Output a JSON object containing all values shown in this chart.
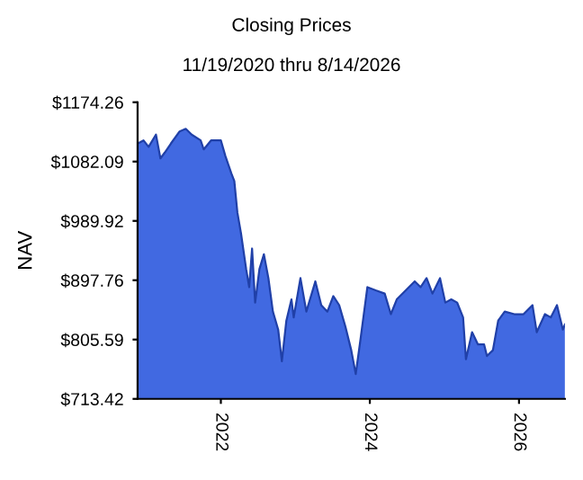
{
  "chart_data": {
    "type": "area",
    "title": "Closing Prices",
    "subtitle": "11/19/2020 thru 8/14/2026",
    "ylabel": "NAV",
    "x": [
      "2020-11-19",
      "2020-12-18",
      "2021-01-12",
      "2021-02-17",
      "2021-03-11",
      "2021-04-01",
      "2021-05-01",
      "2021-06-13",
      "2021-07-13",
      "2021-08-11",
      "2021-09-24",
      "2021-10-09",
      "2021-11-14",
      "2022-01-01",
      "2022-01-23",
      "2022-02-21",
      "2022-03-08",
      "2022-03-23",
      "2022-04-10",
      "2022-05-05",
      "2022-05-20",
      "2022-06-03",
      "2022-06-18",
      "2022-07-09",
      "2022-07-31",
      "2022-08-22",
      "2022-09-13",
      "2022-10-09",
      "2022-10-27",
      "2022-11-18",
      "2022-12-13",
      "2022-12-24",
      "2023-01-26",
      "2023-02-24",
      "2023-04-09",
      "2023-05-08",
      "2023-06-07",
      "2023-07-06",
      "2023-08-04",
      "2023-09-03",
      "2023-10-02",
      "2023-10-24",
      "2023-11-15",
      "2023-12-20",
      "2024-01-30",
      "2024-03-14",
      "2024-04-13",
      "2024-05-12",
      "2024-06-25",
      "2024-08-08",
      "2024-09-06",
      "2024-10-05",
      "2024-11-03",
      "2024-12-10",
      "2025-01-05",
      "2025-02-03",
      "2025-03-04",
      "2025-04-02",
      "2025-04-16",
      "2025-05-16",
      "2025-06-14",
      "2025-07-14",
      "2025-07-28",
      "2025-08-26",
      "2025-09-21",
      "2025-10-23",
      "2025-12-09",
      "2026-01-23",
      "2026-03-08",
      "2026-03-29",
      "2026-05-08",
      "2026-06-06",
      "2026-07-06",
      "2026-08-04",
      "2026-08-14"
    ],
    "series": [
      {
        "color": "#4169e1",
        "values": [
          1110,
          1115,
          1105,
          1124,
          1087,
          1096,
          1110,
          1129,
          1133,
          1124,
          1115,
          1101,
          1115,
          1115,
          1091,
          1064,
          1052,
          1003,
          970,
          915,
          887,
          947,
          863,
          915,
          938,
          901,
          849,
          821,
          772,
          835,
          868,
          840,
          901,
          849,
          896,
          859,
          849,
          873,
          859,
          826,
          789,
          752,
          803,
          887,
          882,
          877,
          845,
          868,
          882,
          896,
          887,
          901,
          877,
          901,
          863,
          868,
          863,
          840,
          775,
          817,
          798,
          798,
          780,
          789,
          835,
          849,
          845,
          845,
          859,
          817,
          845,
          840,
          859,
          821,
          829
        ]
      }
    ],
    "xlim": [
      "2020-11-19",
      "2026-08-14"
    ],
    "xticks": [
      {
        "value": "2022-01-01",
        "label": "2022"
      },
      {
        "value": "2024-01-01",
        "label": "2024"
      },
      {
        "value": "2026-01-01",
        "label": "2026"
      }
    ],
    "ylim": [
      713.42,
      1174.26
    ],
    "yticks": [
      {
        "value": 713.42,
        "label": "$713.42"
      },
      {
        "value": 805.59,
        "label": "$805.59"
      },
      {
        "value": 897.76,
        "label": "$897.76"
      },
      {
        "value": 989.92,
        "label": "$989.92"
      },
      {
        "value": 1082.09,
        "label": "$1082.09"
      },
      {
        "value": 1174.26,
        "label": "$1174.26"
      }
    ],
    "grid": false,
    "legend": false
  }
}
